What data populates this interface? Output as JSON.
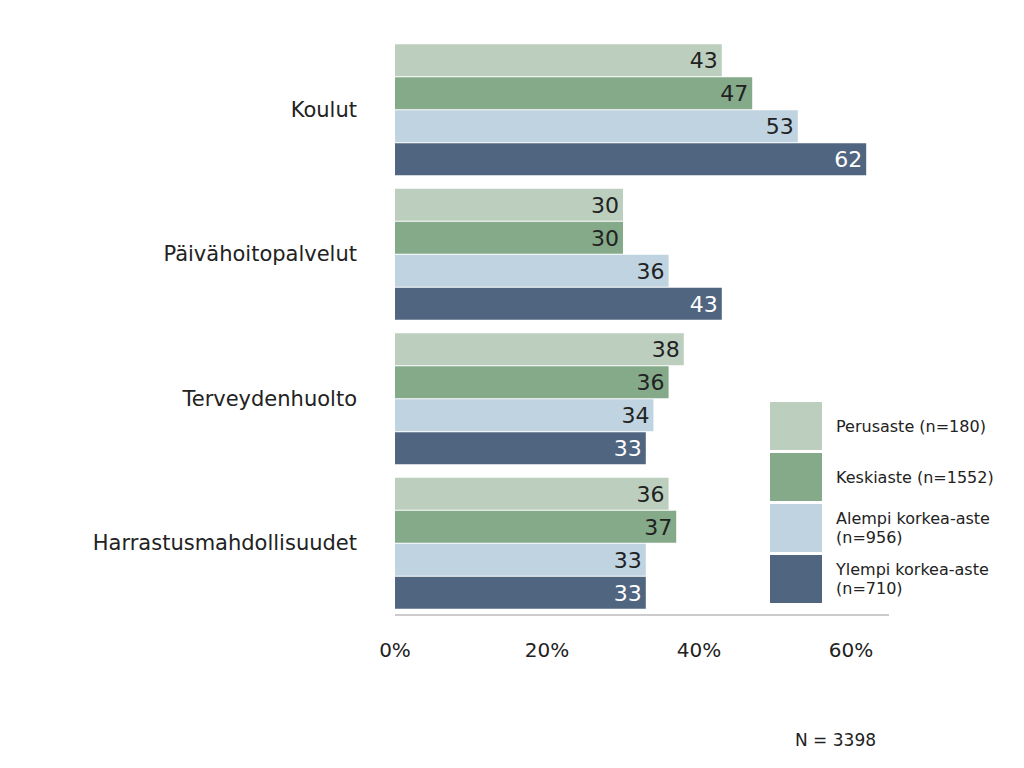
{
  "chart_data": {
    "type": "bar",
    "orientation": "horizontal",
    "stacked": false,
    "data_labels": true,
    "grid": false,
    "legend": "lower right",
    "annotation": "N = 3398",
    "categories": [
      "Koulut",
      "Päivähoitopalvelut",
      "Terveydenhuolto",
      "Harrastusmahdollisuudet"
    ],
    "series": [
      {
        "name": "Perusaste (n=180)",
        "color": "#bccfbf",
        "values": [
          43,
          30,
          38,
          36
        ]
      },
      {
        "name": "Keskiaste (n=1552)",
        "color": "#84aa8a",
        "values": [
          47,
          30,
          36,
          37
        ]
      },
      {
        "name": "Alempi korkea-aste (n=956)",
        "color": "#bfd3e0",
        "values": [
          53,
          36,
          34,
          33
        ]
      },
      {
        "name": "Ylempi korkea-aste (n=710)",
        "color": "#4f6580",
        "values": [
          62,
          43,
          33,
          33
        ]
      }
    ],
    "xlim": [
      0,
      65
    ],
    "xticks": [
      {
        "value": 0,
        "label": "0%"
      },
      {
        "value": 20,
        "label": "20%"
      },
      {
        "value": 40,
        "label": "40%"
      },
      {
        "value": 60,
        "label": "60%"
      }
    ]
  }
}
